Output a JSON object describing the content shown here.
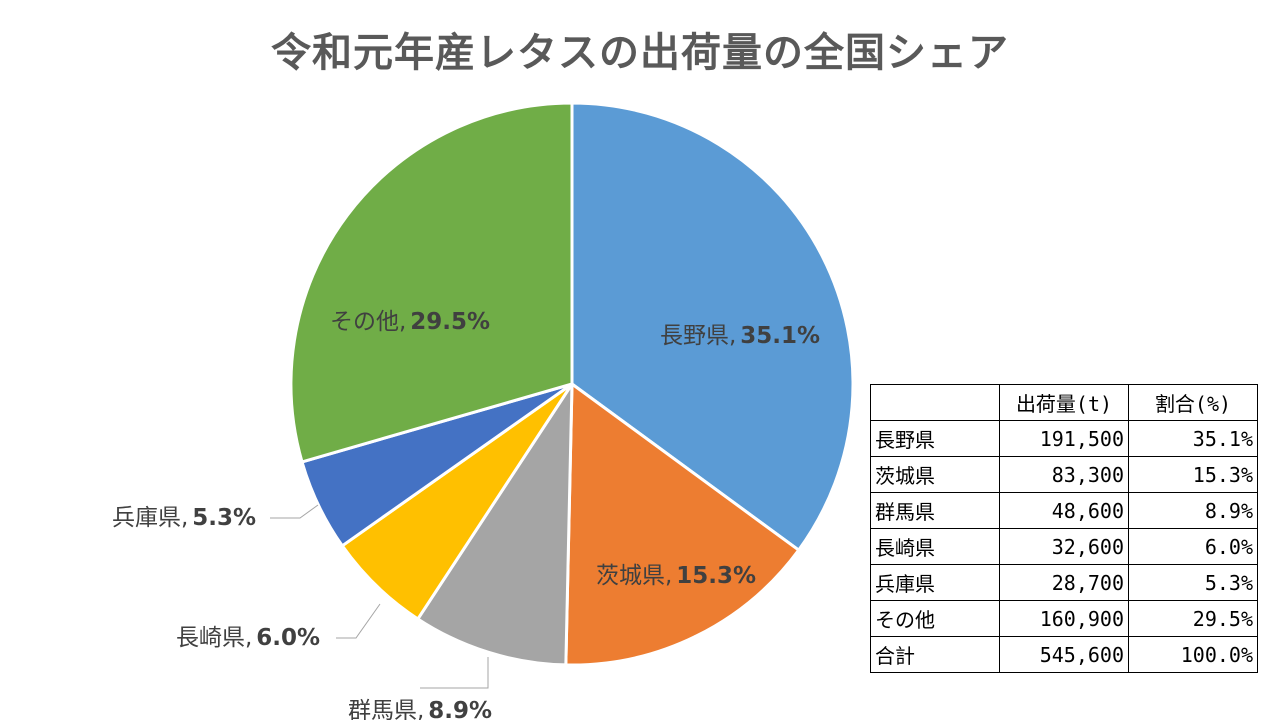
{
  "chart_data": {
    "type": "pie",
    "title": "令和元年産レタスの出荷量の全国シェア",
    "slices": [
      {
        "label": "長野県",
        "value": 35.1,
        "pct_label": "35.1%",
        "color": "#5B9BD5"
      },
      {
        "label": "茨城県",
        "value": 15.3,
        "pct_label": "15.3%",
        "color": "#ED7D31"
      },
      {
        "label": "群馬県",
        "value": 8.9,
        "pct_label": "8.9%",
        "color": "#A5A5A5"
      },
      {
        "label": "長崎県",
        "value": 6.0,
        "pct_label": "6.0%",
        "color": "#FFC000"
      },
      {
        "label": "兵庫県",
        "value": 5.3,
        "pct_label": "5.3%",
        "color": "#4472C4"
      },
      {
        "label": "その他",
        "value": 29.5,
        "pct_label": "29.5%",
        "color": "#70AD47"
      }
    ],
    "label_separator": ", "
  },
  "table": {
    "headers": [
      "",
      "出荷量(t)",
      "割合(%)"
    ],
    "rows": [
      [
        "長野県",
        "191,500",
        "35.1%"
      ],
      [
        "茨城県",
        "83,300",
        "15.3%"
      ],
      [
        "群馬県",
        "48,600",
        "8.9%"
      ],
      [
        "長崎県",
        "32,600",
        "6.0%"
      ],
      [
        "兵庫県",
        "28,700",
        "5.3%"
      ],
      [
        "その他",
        "160,900",
        "29.5%"
      ]
    ],
    "total": [
      "合計",
      "545,600",
      "100.0%"
    ]
  }
}
